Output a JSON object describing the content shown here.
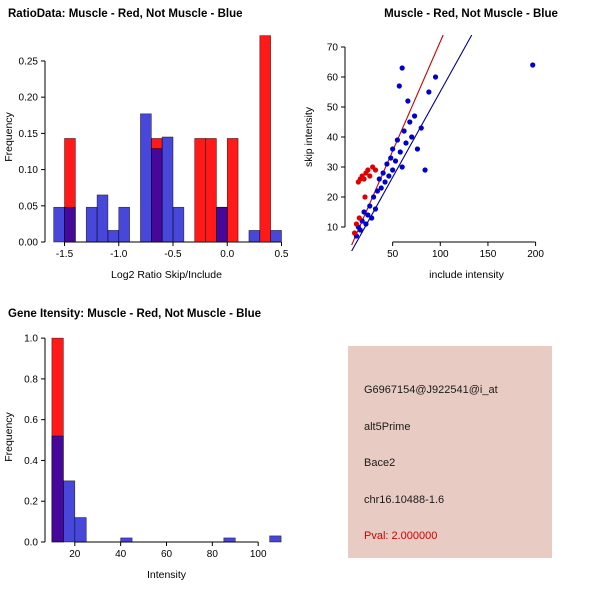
{
  "colors": {
    "muscle_red": "#FF0000",
    "not_muscle_blue": "#0000CC",
    "fit_line_red": "#CC0000",
    "fit_line_blue": "#00008B",
    "axis": "#000000",
    "info_box_bg": "#E8CCC3",
    "pval_red": "#CC0000"
  },
  "info_box": {
    "probe_id": "G6967154@J922541@i_at",
    "event_type": "alt5Prime",
    "gene": "Bace2",
    "location": "chr16.10488-1.6",
    "pval": "Pval: 2.000000"
  },
  "chart_data": [
    {
      "id": "ratio-hist",
      "type": "bar",
      "title": "RatioData: Muscle - Red, Not Muscle - Blue",
      "xlabel": "Log2 Ratio Skip/Include",
      "ylabel": "Frequency",
      "xlim": [
        -1.68,
        0.56
      ],
      "ylim": [
        0,
        0.29
      ],
      "xticks": [
        -1.5,
        -1.0,
        -0.5,
        0.0,
        0.5
      ],
      "xtick_labels": [
        "-1.5",
        "-1.0",
        "-0.5",
        "0.0",
        "0.5"
      ],
      "yticks": [
        0,
        0.05,
        0.1,
        0.15,
        0.2,
        0.25
      ],
      "ytick_labels": [
        "0.00",
        "0.05",
        "0.10",
        "0.15",
        "0.20",
        "0.25"
      ],
      "bins": {
        "start": -1.6,
        "width": 0.1
      },
      "series": [
        {
          "name": "Muscle",
          "color": "#FF0000",
          "opacity": 0.9,
          "values": [
            0,
            0.143,
            0,
            0,
            0,
            0,
            0,
            0,
            0,
            0.143,
            0,
            0,
            0,
            0.143,
            0.143,
            0.048,
            0.143,
            0,
            0,
            0.285,
            0
          ]
        },
        {
          "name": "Not Muscle",
          "color": "#0000CC",
          "opacity": 0.72,
          "values": [
            0.048,
            0.048,
            0,
            0.048,
            0.065,
            0.016,
            0.048,
            0,
            0.177,
            0.129,
            0.145,
            0.048,
            0,
            0,
            0,
            0.048,
            0,
            0,
            0.016,
            0,
            0.016
          ]
        }
      ]
    },
    {
      "id": "scatter",
      "type": "scatter",
      "title": "Muscle - Red, Not Muscle - Blue",
      "xlabel": "include intensity",
      "ylabel": "skip intensity",
      "xlim": [
        0,
        255
      ],
      "ylim": [
        5,
        75
      ],
      "xticks": [
        50,
        100,
        150,
        200
      ],
      "xtick_labels": [
        "50",
        "100",
        "150",
        "200"
      ],
      "yticks": [
        10,
        20,
        30,
        40,
        50,
        60,
        70
      ],
      "ytick_labels": [
        "10",
        "20",
        "30",
        "40",
        "50",
        "60",
        "70"
      ],
      "series": [
        {
          "name": "Not Muscle",
          "color": "#0000CC",
          "points": [
            [
              12,
              7
            ],
            [
              14,
              10
            ],
            [
              16,
              9
            ],
            [
              18,
              12
            ],
            [
              20,
              15
            ],
            [
              22,
              11
            ],
            [
              24,
              14
            ],
            [
              26,
              17
            ],
            [
              28,
              13
            ],
            [
              30,
              20
            ],
            [
              32,
              16
            ],
            [
              34,
              22
            ],
            [
              36,
              26
            ],
            [
              38,
              23
            ],
            [
              40,
              28
            ],
            [
              42,
              25
            ],
            [
              44,
              31
            ],
            [
              46,
              27
            ],
            [
              48,
              33
            ],
            [
              50,
              29
            ],
            [
              50,
              36
            ],
            [
              53,
              32
            ],
            [
              55,
              39
            ],
            [
              57,
              57
            ],
            [
              58,
              35
            ],
            [
              60,
              30
            ],
            [
              60,
              63
            ],
            [
              62,
              42
            ],
            [
              64,
              38
            ],
            [
              66,
              52
            ],
            [
              68,
              45
            ],
            [
              70,
              40
            ],
            [
              73,
              47
            ],
            [
              76,
              36
            ],
            [
              80,
              43
            ],
            [
              84,
              29
            ],
            [
              88,
              55
            ],
            [
              95,
              60
            ],
            [
              197,
              64
            ]
          ]
        },
        {
          "name": "Muscle",
          "color": "#E00000",
          "points": [
            [
              10,
              8
            ],
            [
              12,
              11
            ],
            [
              14,
              25
            ],
            [
              15,
              13
            ],
            [
              16,
              26
            ],
            [
              18,
              27
            ],
            [
              20,
              26
            ],
            [
              21,
              20
            ],
            [
              22,
              28
            ],
            [
              24,
              29
            ],
            [
              26,
              27
            ],
            [
              29,
              30
            ],
            [
              32,
              29
            ]
          ]
        }
      ],
      "lines": [
        {
          "name": "muscle-fit",
          "color": "#CC0000",
          "x1": 7,
          "y1": 4,
          "x2": 103,
          "y2": 74
        },
        {
          "name": "not-muscle-fit",
          "color": "#00008B",
          "x1": 7,
          "y1": 2,
          "x2": 133,
          "y2": 74
        }
      ]
    },
    {
      "id": "gene-hist",
      "type": "bar",
      "title": "Gene Itensity: Muscle - Red, Not Muscle - Blue",
      "xlabel": "Intensity",
      "ylabel": "Frequency",
      "xlim": [
        7,
        113
      ],
      "ylim": [
        0,
        1.03
      ],
      "xticks": [
        20,
        40,
        60,
        80,
        100
      ],
      "xtick_labels": [
        "20",
        "40",
        "60",
        "80",
        "100"
      ],
      "yticks": [
        0,
        0.2,
        0.4,
        0.6,
        0.8,
        1.0
      ],
      "ytick_labels": [
        "0.0",
        "0.2",
        "0.4",
        "0.6",
        "0.8",
        "1.0"
      ],
      "bins": {
        "start": 10,
        "width": 5
      },
      "series": [
        {
          "name": "Muscle",
          "color": "#FF0000",
          "opacity": 0.9,
          "values": [
            1.0,
            0,
            0,
            0,
            0,
            0,
            0,
            0,
            0,
            0,
            0,
            0,
            0,
            0,
            0,
            0,
            0,
            0,
            0,
            0
          ]
        },
        {
          "name": "Not Muscle",
          "color": "#0000CC",
          "opacity": 0.72,
          "values": [
            0.52,
            0.3,
            0.12,
            0,
            0,
            0,
            0.02,
            0,
            0,
            0,
            0,
            0,
            0,
            0,
            0,
            0.02,
            0,
            0,
            0,
            0.03
          ]
        }
      ]
    }
  ]
}
